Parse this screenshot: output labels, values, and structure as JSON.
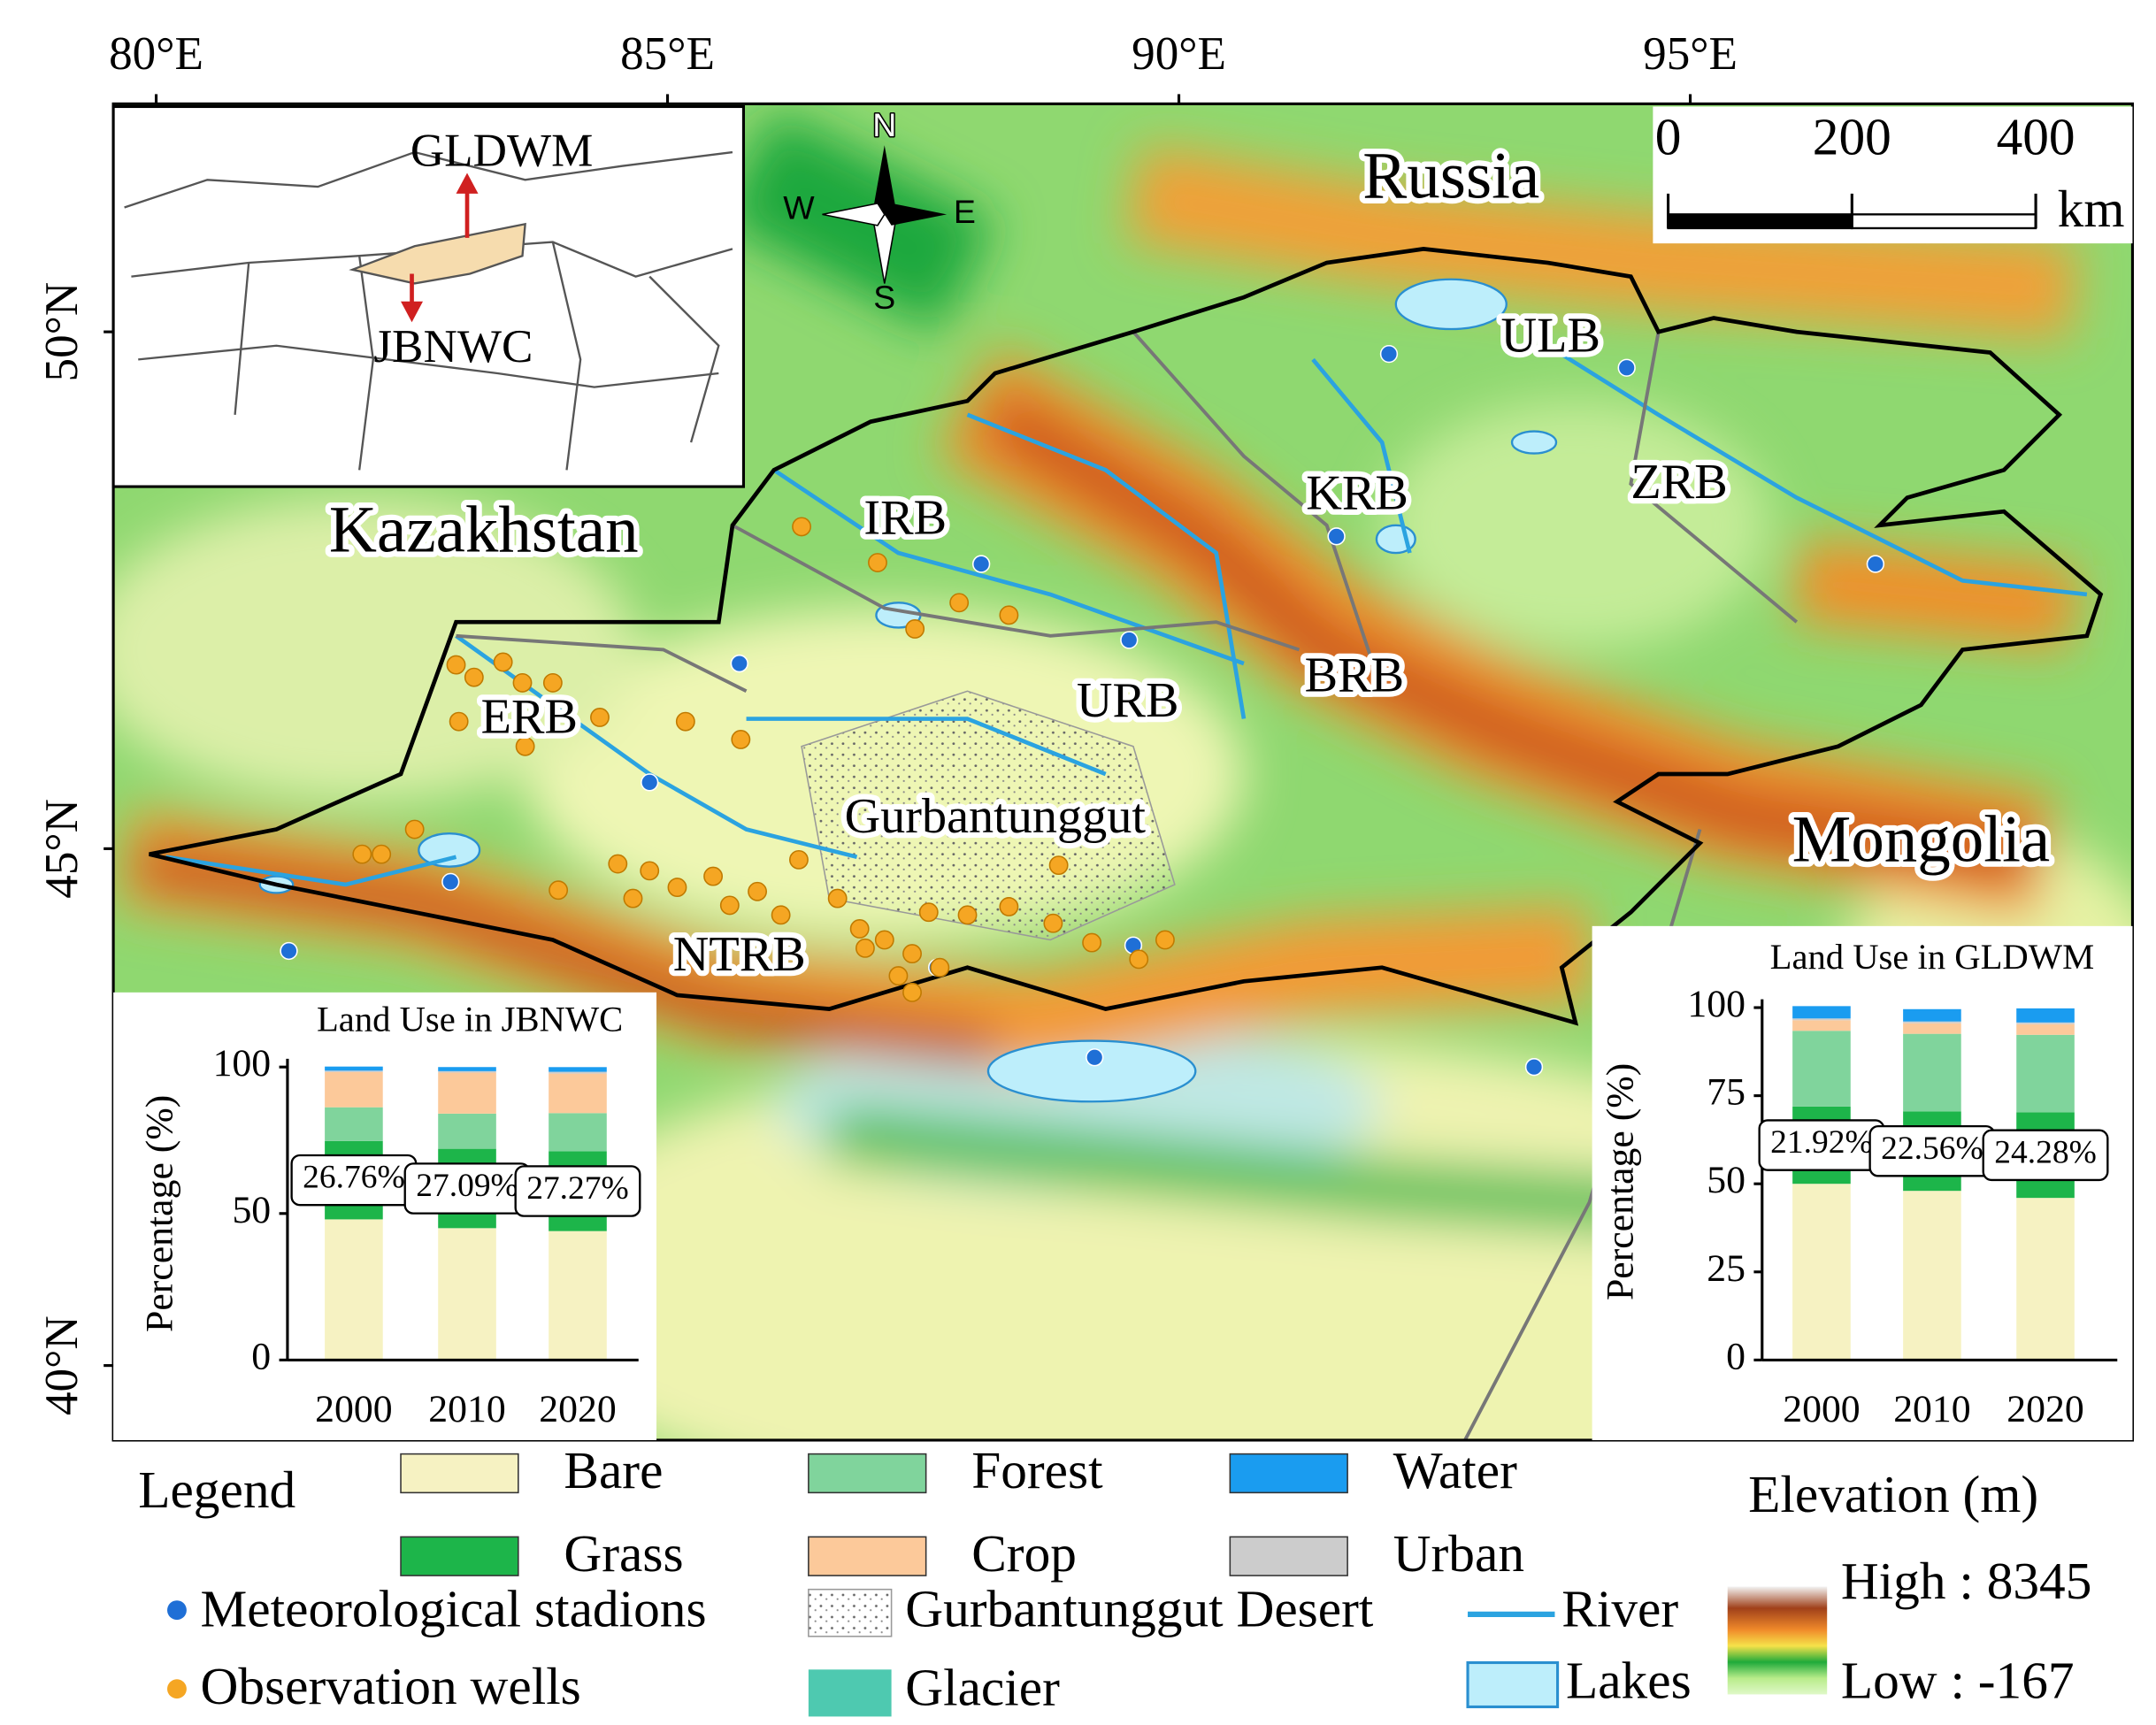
{
  "map": {
    "lon_ticks": [
      {
        "value": 80,
        "label": "80°E"
      },
      {
        "value": 85,
        "label": "85°E"
      },
      {
        "value": 90,
        "label": "90°E"
      },
      {
        "value": 95,
        "label": "95°E"
      }
    ],
    "lat_ticks": [
      {
        "value": 50,
        "label": "50°N"
      },
      {
        "value": 45,
        "label": "45°N"
      },
      {
        "value": 40,
        "label": "40°N"
      }
    ],
    "regions": [
      "Russia",
      "Kazakhstan",
      "Mongolia"
    ],
    "basins": [
      "ULB",
      "ZRB",
      "KRB",
      "IRB",
      "BRB",
      "URB",
      "ERB",
      "NTRB"
    ],
    "desert": "Gurbantunggut",
    "compass": {
      "n": "N",
      "s": "S",
      "e": "E",
      "w": "W"
    },
    "scale_bar": {
      "ticks": [
        0,
        200,
        400
      ],
      "unit": "km"
    },
    "inset": {
      "north_label": "GLDWM",
      "south_label": "JBNWC"
    }
  },
  "chart_data": [
    {
      "type": "bar",
      "stacked": true,
      "title": "Land Use in JBNWC",
      "y_label": "Percentage (%)",
      "categories": [
        "2000",
        "2010",
        "2020"
      ],
      "ylim": [
        0,
        100
      ],
      "yticks": [
        0,
        50,
        100
      ],
      "series": [
        {
          "name": "Bare",
          "color": "#f6f2c2",
          "values": [
            48,
            45,
            44
          ]
        },
        {
          "name": "Grass",
          "color": "#1db54a",
          "values": [
            26.76,
            27.09,
            27.27
          ],
          "value_labels": [
            "26.76%",
            "27.09%",
            "27.27%"
          ]
        },
        {
          "name": "Forest",
          "color": "#80d49c",
          "values": [
            11.5,
            12,
            13
          ]
        },
        {
          "name": "Crop",
          "color": "#fcc99a",
          "values": [
            12,
            14,
            13.5
          ]
        },
        {
          "name": "Urban",
          "color": "#cccccc",
          "values": [
            0.5,
            0.5,
            0.6
          ]
        },
        {
          "name": "Water",
          "color": "#1a9cf0",
          "values": [
            1.4,
            1.4,
            1.6
          ]
        }
      ]
    },
    {
      "type": "bar",
      "stacked": true,
      "title": "Land Use in GLDWM",
      "y_label": "Percentage (%)",
      "categories": [
        "2000",
        "2010",
        "2020"
      ],
      "ylim": [
        0,
        100
      ],
      "yticks": [
        0,
        25,
        50,
        75,
        100
      ],
      "series": [
        {
          "name": "Bare",
          "color": "#f6f2c2",
          "values": [
            50,
            48,
            46
          ]
        },
        {
          "name": "Grass",
          "color": "#1db54a",
          "values": [
            21.92,
            22.56,
            24.28
          ],
          "value_labels": [
            "21.92%",
            "22.56%",
            "24.28%"
          ]
        },
        {
          "name": "Forest",
          "color": "#80d49c",
          "values": [
            21.5,
            22,
            22
          ]
        },
        {
          "name": "Crop",
          "color": "#fcc99a",
          "values": [
            3,
            3,
            3
          ]
        },
        {
          "name": "Urban",
          "color": "#cccccc",
          "values": [
            0.5,
            0.5,
            0.5
          ]
        },
        {
          "name": "Water",
          "color": "#1a9cf0",
          "values": [
            3.5,
            3.5,
            4
          ]
        }
      ]
    }
  ],
  "legend": {
    "title": "Legend",
    "points": [
      "Meteorological stadions",
      "Observation wells"
    ],
    "desert": "Gurbantunggut Desert",
    "glacier": "Glacier",
    "river": "River",
    "lakes": "Lakes"
  },
  "elevation": {
    "title": "Elevation (m)",
    "high": "High : 8345",
    "low": "Low : -167"
  }
}
